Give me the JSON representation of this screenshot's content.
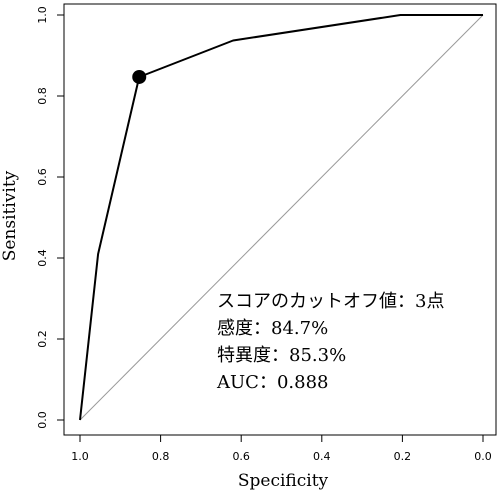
{
  "chart_data": {
    "type": "line",
    "xlabel": "Specificity",
    "ylabel": "Sensitivity",
    "x_reversed": true,
    "xlim": [
      1.0,
      0.0
    ],
    "ylim": [
      0.0,
      1.0
    ],
    "xticks": [
      "1.0",
      "0.8",
      "0.6",
      "0.4",
      "0.2",
      "0.0"
    ],
    "yticks": [
      "0.0",
      "0.2",
      "0.4",
      "0.6",
      "0.8",
      "1.0"
    ],
    "grid": false,
    "reference_line": true,
    "roc_points": [
      {
        "specificity": 1.0,
        "sensitivity": 0.0
      },
      {
        "specificity": 0.955,
        "sensitivity": 0.41
      },
      {
        "specificity": 0.853,
        "sensitivity": 0.847
      },
      {
        "specificity": 0.62,
        "sensitivity": 0.937
      },
      {
        "specificity": 0.205,
        "sensitivity": 1.0
      },
      {
        "specificity": 0.0,
        "sensitivity": 1.0
      }
    ],
    "cutoff_point": {
      "specificity": 0.853,
      "sensitivity": 0.847
    },
    "annotations": [
      "スコアのカットオフ値：3点",
      "感度：84.7%",
      "特異度：85.3%",
      "AUC：0.888"
    ]
  }
}
